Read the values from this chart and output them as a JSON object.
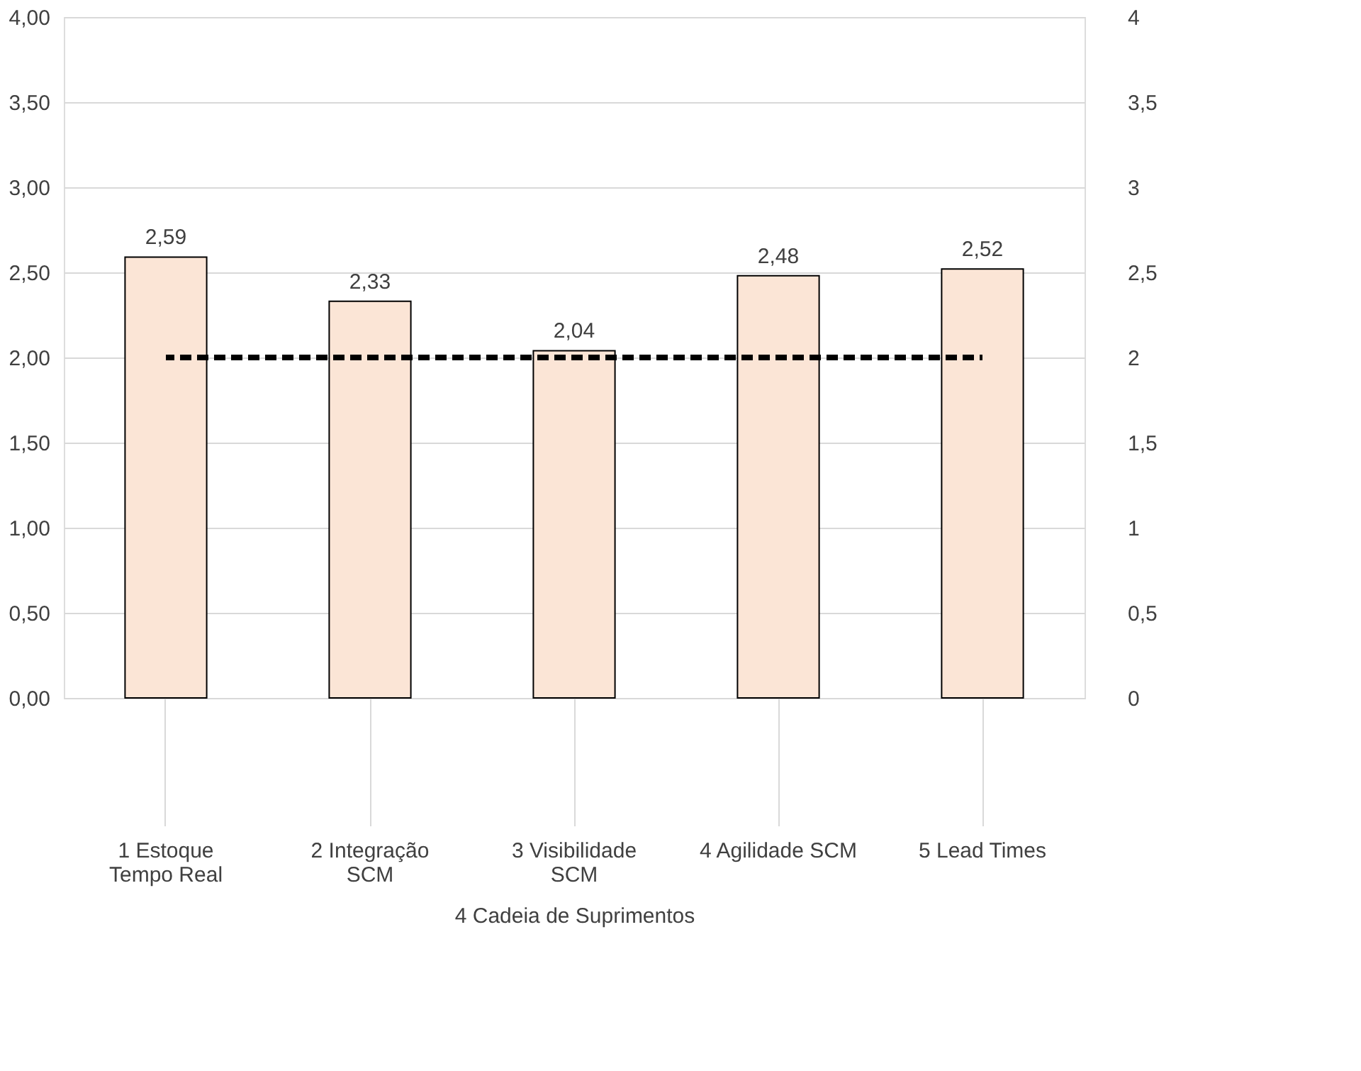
{
  "chart_data": {
    "type": "bar",
    "xlabel": "4 Cadeia de Suprimentos",
    "categories": [
      "1 Estoque\nTempo Real",
      "2 Integração\nSCM",
      "3 Visibilidade\nSCM",
      "4 Agilidade SCM",
      "5 Lead Times"
    ],
    "series": [
      {
        "color": "#fbe5d6",
        "values": [
          2.59,
          2.33,
          2.04,
          2.48,
          2.52
        ],
        "value_labels": [
          "2,59",
          "2,33",
          "2,04",
          "2,48",
          "2,52"
        ]
      },
      {
        "type": "line",
        "axis": "y2",
        "color": "#000000",
        "line_style": "dashed",
        "values": [
          2,
          2,
          2,
          2,
          2
        ]
      }
    ],
    "ylim": [
      0,
      4
    ],
    "yticks": [
      {
        "value": 0,
        "label": "0,00"
      },
      {
        "value": 0.5,
        "label": "0,50"
      },
      {
        "value": 1,
        "label": "1,00"
      },
      {
        "value": 1.5,
        "label": "1,50"
      },
      {
        "value": 2,
        "label": "2,00"
      },
      {
        "value": 2.5,
        "label": "2,50"
      },
      {
        "value": 3,
        "label": "3,00"
      },
      {
        "value": 3.5,
        "label": "3,50"
      },
      {
        "value": 4,
        "label": "4,00"
      }
    ],
    "y2lim": [
      0,
      4
    ],
    "y2ticks": [
      0,
      {
        "value": 0.5,
        "label": "0,5"
      },
      1,
      {
        "value": 1.5,
        "label": "1,5"
      },
      2,
      {
        "value": 2.5,
        "label": "2,5"
      },
      3,
      {
        "value": 3.5,
        "label": "3,5"
      },
      4
    ],
    "grid": "y"
  }
}
